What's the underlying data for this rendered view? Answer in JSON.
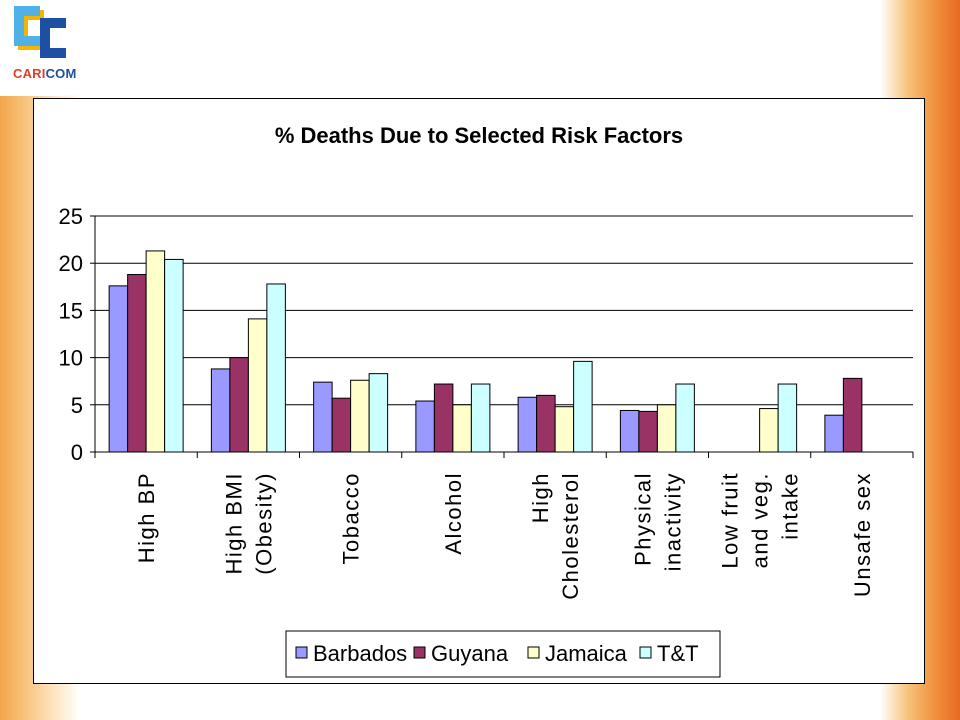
{
  "logo": {
    "part1": "CARI",
    "part2": "COM"
  },
  "chart_data": {
    "type": "bar",
    "title": "%  Deaths Due to Selected Risk Factors",
    "xlabel": "",
    "ylabel": "",
    "ylim": [
      0,
      25
    ],
    "yticks": [
      0,
      5,
      10,
      15,
      20,
      25
    ],
    "grid": true,
    "legend_position": "bottom",
    "categories": [
      [
        "High BP"
      ],
      [
        "High BMI",
        "(Obesity)"
      ],
      [
        "Tobacco"
      ],
      [
        "Alcohol"
      ],
      [
        "High",
        "Cholesterol"
      ],
      [
        "Physical",
        "inactivity"
      ],
      [
        "Low fruit",
        "and veg.",
        "intake"
      ],
      [
        "Unsafe sex"
      ]
    ],
    "series": [
      {
        "name": "Barbados",
        "color": "#9999ff",
        "values": [
          17.6,
          8.8,
          7.4,
          5.4,
          5.8,
          4.4,
          null,
          3.9
        ]
      },
      {
        "name": "Guyana",
        "color": "#993366",
        "values": [
          18.8,
          10.0,
          5.7,
          7.2,
          6.0,
          4.3,
          null,
          7.8
        ]
      },
      {
        "name": "Jamaica",
        "color": "#ffffcc",
        "values": [
          21.3,
          14.1,
          7.6,
          5.0,
          4.8,
          5.0,
          4.6,
          null
        ]
      },
      {
        "name": "T&T",
        "color": "#ccffff",
        "values": [
          20.4,
          17.8,
          8.3,
          7.2,
          9.6,
          7.2,
          7.2,
          null
        ]
      }
    ]
  }
}
